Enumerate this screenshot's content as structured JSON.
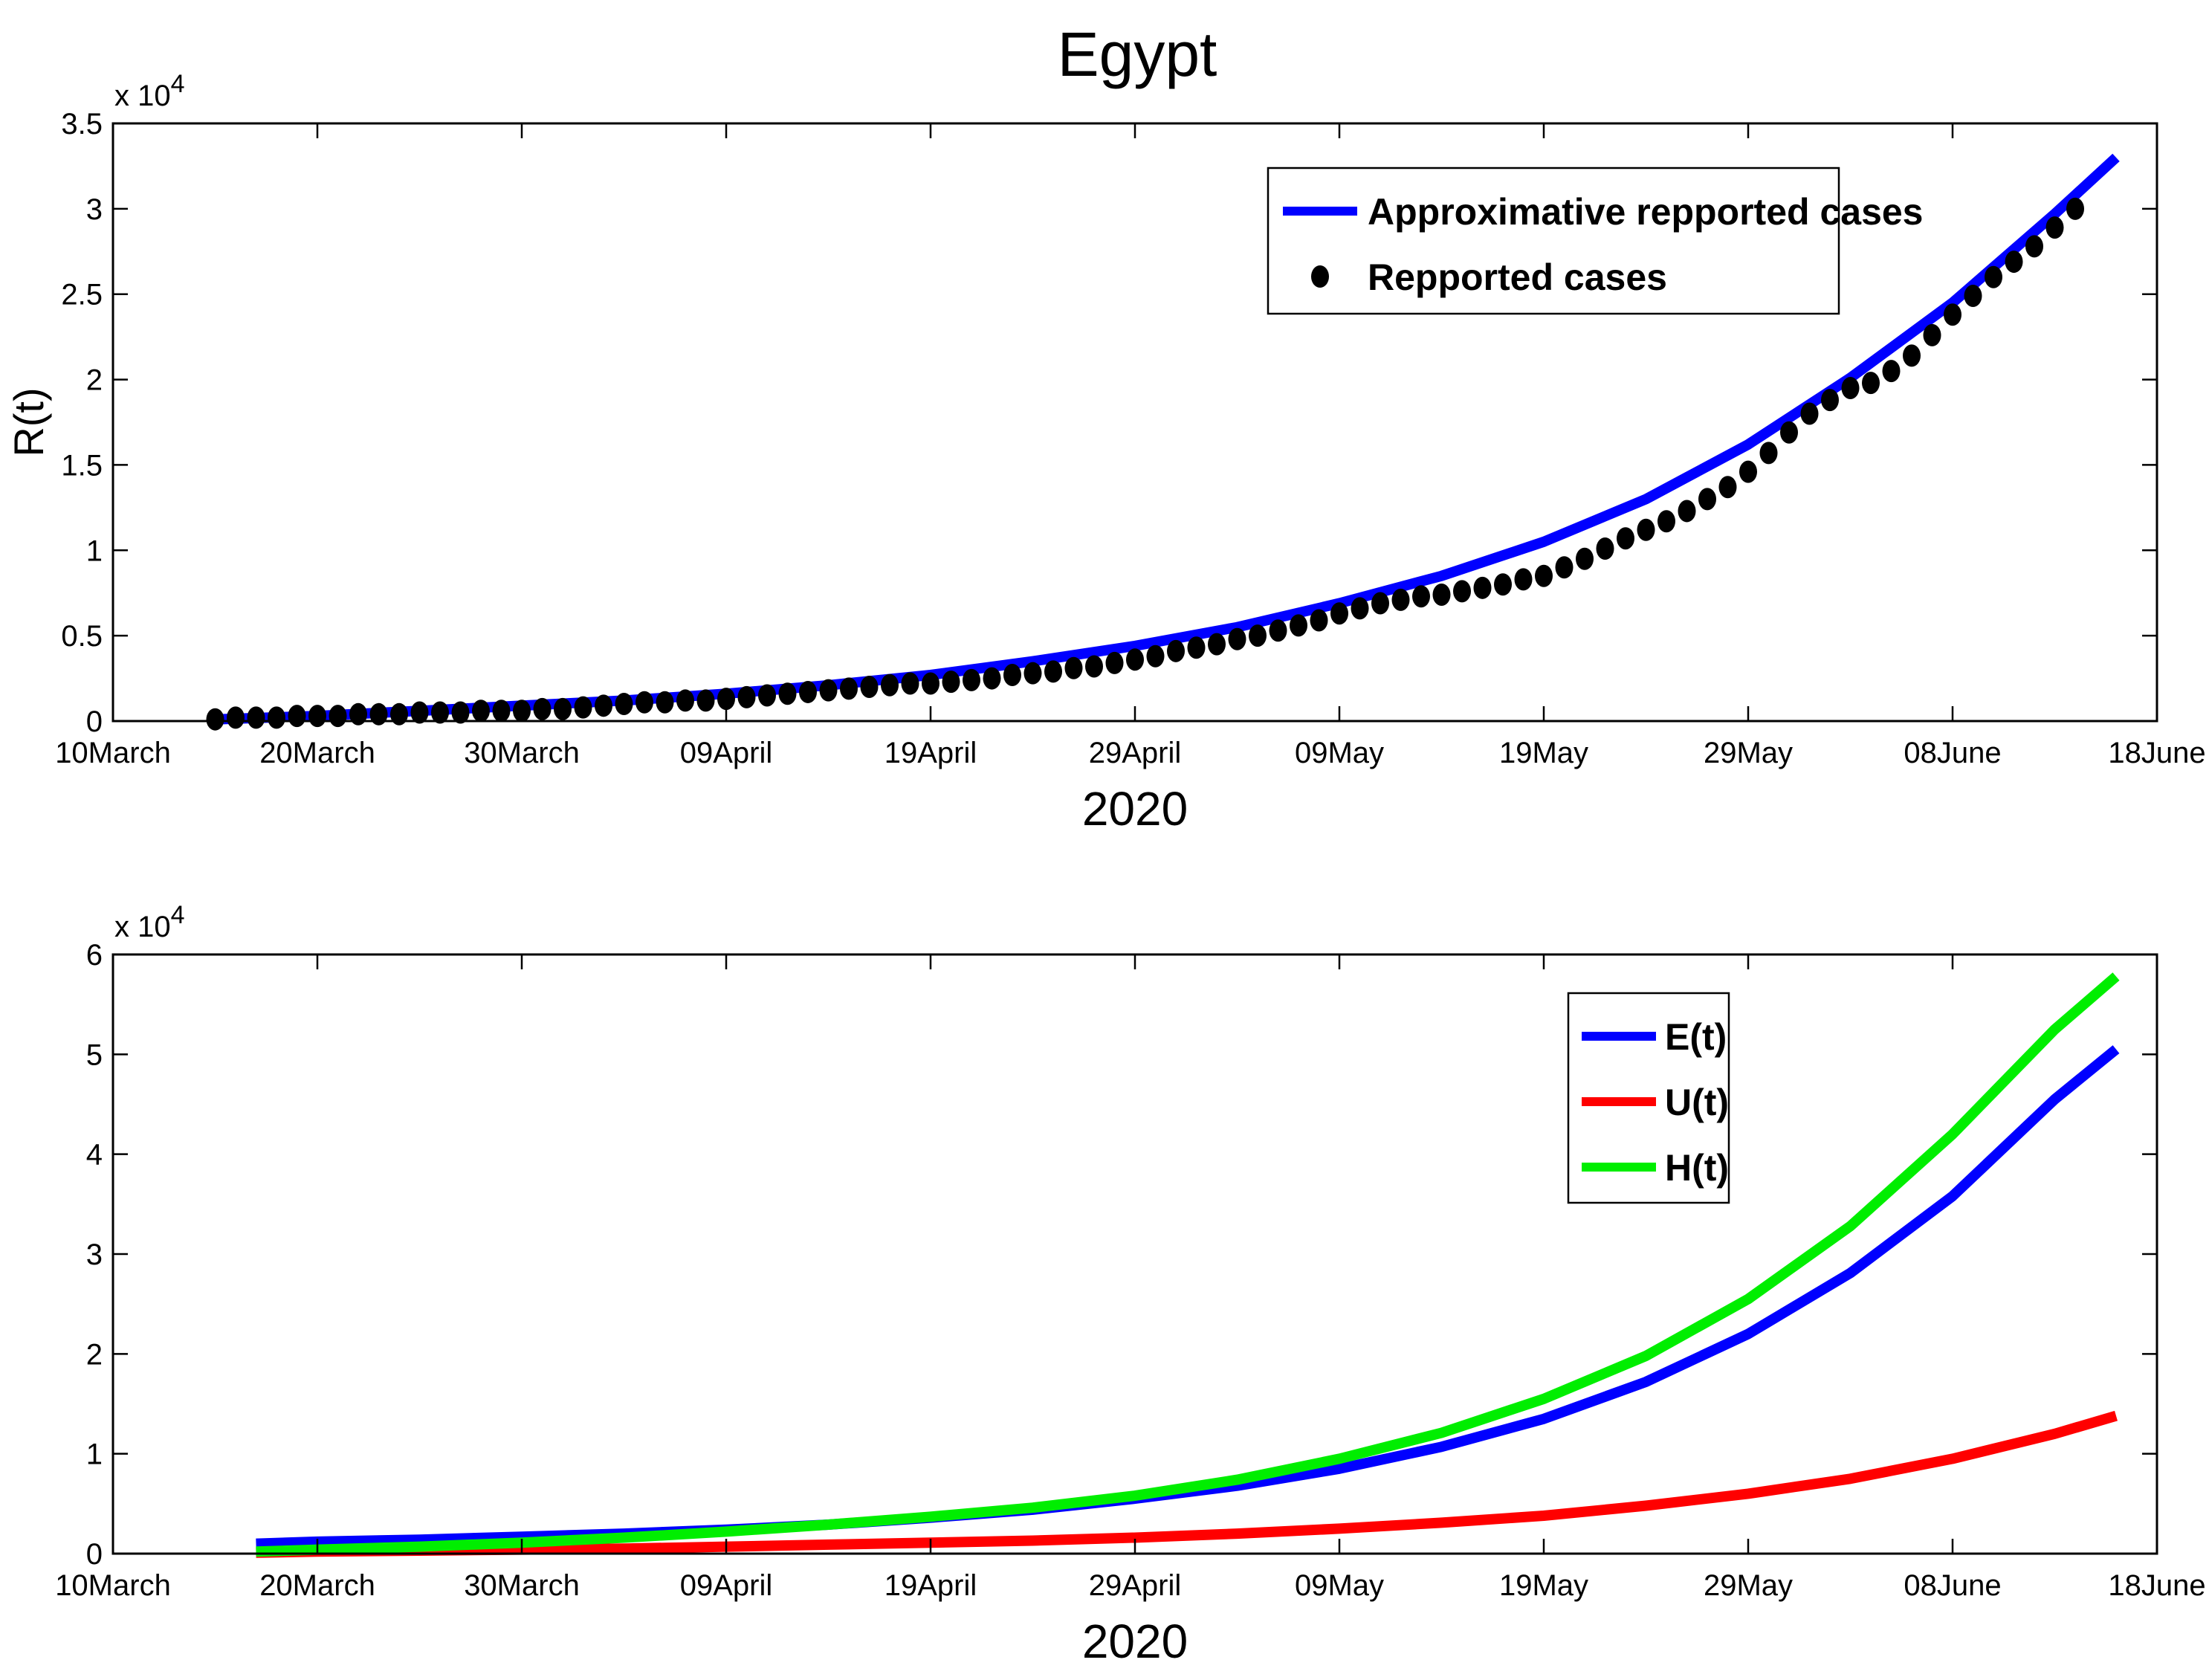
{
  "figure": {
    "title": "Egypt"
  },
  "chart_data": [
    {
      "type": "line",
      "panel": "top",
      "title": "Egypt",
      "xlabel": "2020",
      "ylabel": "R(t)",
      "y_multiplier": "x 10",
      "y_exponent": "4",
      "xlim": [
        0,
        100
      ],
      "ylim": [
        0,
        3.5
      ],
      "x_tick_values": [
        0,
        10,
        20,
        30,
        40,
        50,
        60,
        70,
        80,
        90,
        100
      ],
      "x_tick_labels": [
        "10March",
        "20March",
        "30March",
        "09April",
        "19April",
        "29April",
        "09May",
        "19May",
        "29May",
        "08June",
        "18June"
      ],
      "y_tick_values": [
        0,
        0.5,
        1,
        1.5,
        2,
        2.5,
        3,
        3.5
      ],
      "y_tick_labels": [
        "0",
        "0.5",
        "1",
        "1.5",
        "2",
        "2.5",
        "3",
        "3.5"
      ],
      "legend_position": "top-right",
      "series": [
        {
          "name": "Approximative repported cases",
          "style": "line",
          "color": "#0000ff",
          "x": [
            5,
            10,
            15,
            20,
            25,
            30,
            35,
            40,
            45,
            50,
            55,
            60,
            65,
            70,
            75,
            80,
            85,
            90,
            95,
            98
          ],
          "values": [
            0.01,
            0.03,
            0.06,
            0.09,
            0.12,
            0.16,
            0.21,
            0.27,
            0.35,
            0.44,
            0.55,
            0.69,
            0.85,
            1.05,
            1.3,
            1.62,
            2.01,
            2.45,
            2.97,
            3.3
          ]
        },
        {
          "name": "Repported cases",
          "style": "marker",
          "color": "#000000",
          "x": [
            5,
            6,
            7,
            8,
            9,
            10,
            11,
            12,
            13,
            14,
            15,
            16,
            17,
            18,
            19,
            20,
            21,
            22,
            23,
            24,
            25,
            26,
            27,
            28,
            29,
            30,
            31,
            32,
            33,
            34,
            35,
            36,
            37,
            38,
            39,
            40,
            41,
            42,
            43,
            44,
            45,
            46,
            47,
            48,
            49,
            50,
            51,
            52,
            53,
            54,
            55,
            56,
            57,
            58,
            59,
            60,
            61,
            62,
            63,
            64,
            65,
            66,
            67,
            68,
            69,
            70,
            71,
            72,
            73,
            74,
            75,
            76,
            77,
            78,
            79,
            80,
            81,
            82,
            83,
            84,
            85,
            86,
            87,
            88,
            89,
            90,
            91,
            92,
            93,
            94,
            95,
            96
          ],
          "values": [
            0.01,
            0.02,
            0.02,
            0.02,
            0.03,
            0.03,
            0.03,
            0.04,
            0.04,
            0.04,
            0.05,
            0.05,
            0.05,
            0.06,
            0.06,
            0.06,
            0.07,
            0.07,
            0.08,
            0.09,
            0.1,
            0.11,
            0.11,
            0.12,
            0.12,
            0.13,
            0.14,
            0.15,
            0.16,
            0.17,
            0.18,
            0.19,
            0.2,
            0.21,
            0.22,
            0.22,
            0.23,
            0.24,
            0.25,
            0.27,
            0.28,
            0.29,
            0.31,
            0.32,
            0.34,
            0.36,
            0.38,
            0.41,
            0.43,
            0.45,
            0.48,
            0.5,
            0.53,
            0.56,
            0.59,
            0.63,
            0.66,
            0.69,
            0.71,
            0.73,
            0.74,
            0.76,
            0.78,
            0.8,
            0.83,
            0.85,
            0.9,
            0.95,
            1.01,
            1.07,
            1.12,
            1.17,
            1.23,
            1.3,
            1.37,
            1.46,
            1.57,
            1.69,
            1.8,
            1.88,
            1.95,
            1.98,
            2.05,
            2.14,
            2.26,
            2.38,
            2.49,
            2.6,
            2.69,
            2.78,
            2.89,
            3.0
          ]
        }
      ]
    },
    {
      "type": "line",
      "panel": "bottom",
      "xlabel": "2020",
      "ylabel": "",
      "y_multiplier": "x 10",
      "y_exponent": "4",
      "xlim": [
        0,
        100
      ],
      "ylim": [
        0,
        6
      ],
      "x_tick_values": [
        0,
        10,
        20,
        30,
        40,
        50,
        60,
        70,
        80,
        90,
        100
      ],
      "x_tick_labels": [
        "10March",
        "20March",
        "30March",
        "09April",
        "19April",
        "29April",
        "09May",
        "19May",
        "29May",
        "08June",
        "18June"
      ],
      "y_tick_values": [
        0,
        1,
        2,
        3,
        4,
        5,
        6
      ],
      "y_tick_labels": [
        "0",
        "1",
        "2",
        "3",
        "4",
        "5",
        "6"
      ],
      "legend_position": "top-right",
      "series": [
        {
          "name": "E(t)",
          "color": "#0000ff",
          "x": [
            7,
            10,
            15,
            20,
            25,
            30,
            35,
            40,
            45,
            50,
            55,
            60,
            65,
            70,
            75,
            80,
            85,
            90,
            95,
            98
          ],
          "values": [
            0.1,
            0.12,
            0.14,
            0.17,
            0.2,
            0.24,
            0.29,
            0.36,
            0.44,
            0.55,
            0.68,
            0.85,
            1.07,
            1.35,
            1.72,
            2.2,
            2.81,
            3.58,
            4.55,
            5.05
          ]
        },
        {
          "name": "U(t)",
          "color": "#ff0000",
          "x": [
            7,
            10,
            15,
            20,
            25,
            30,
            35,
            40,
            45,
            50,
            55,
            60,
            65,
            70,
            75,
            80,
            85,
            90,
            95,
            98
          ],
          "values": [
            0.01,
            0.02,
            0.03,
            0.04,
            0.05,
            0.07,
            0.09,
            0.11,
            0.13,
            0.16,
            0.2,
            0.25,
            0.31,
            0.38,
            0.48,
            0.6,
            0.75,
            0.95,
            1.2,
            1.38
          ]
        },
        {
          "name": "H(t)",
          "color": "#00ee00",
          "x": [
            7,
            10,
            15,
            20,
            25,
            30,
            35,
            40,
            45,
            50,
            55,
            60,
            65,
            70,
            75,
            80,
            85,
            90,
            95,
            98
          ],
          "values": [
            0.02,
            0.04,
            0.07,
            0.11,
            0.16,
            0.22,
            0.29,
            0.37,
            0.46,
            0.58,
            0.74,
            0.95,
            1.21,
            1.55,
            1.98,
            2.55,
            3.28,
            4.2,
            5.25,
            5.78
          ]
        }
      ]
    }
  ]
}
